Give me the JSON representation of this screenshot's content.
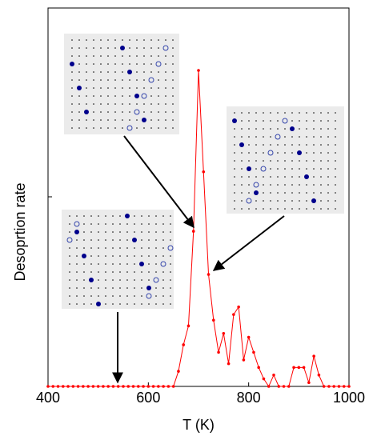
{
  "chart_data": {
    "type": "line",
    "xlabel": "T (K)",
    "ylabel": "Desoprtion rate",
    "x": [
      400,
      410,
      420,
      430,
      440,
      450,
      460,
      470,
      480,
      490,
      500,
      510,
      520,
      530,
      540,
      550,
      560,
      570,
      580,
      590,
      600,
      610,
      620,
      630,
      640,
      650,
      660,
      670,
      680,
      690,
      700,
      710,
      720,
      730,
      740,
      750,
      760,
      770,
      780,
      790,
      800,
      810,
      820,
      830,
      840,
      850,
      860,
      870,
      880,
      890,
      900,
      910,
      920,
      930,
      940,
      950,
      960,
      970,
      980,
      990,
      1000
    ],
    "series": [
      {
        "color": "#ff0000",
        "values": [
          0,
          0,
          0,
          0,
          0,
          0,
          0,
          0,
          0,
          0,
          0,
          0,
          0,
          0,
          0,
          0,
          0,
          0,
          0,
          0,
          0,
          0,
          0,
          0,
          0,
          0,
          0.04,
          0.11,
          0.16,
          0.41,
          0.835,
          0.567,
          0.296,
          0.175,
          0.09,
          0.14,
          0.06,
          0.19,
          0.21,
          0.07,
          0.13,
          0.09,
          0.05,
          0.02,
          0,
          0.03,
          0,
          0,
          0,
          0.05,
          0.05,
          0.05,
          0.01,
          0.08,
          0.03,
          0,
          0,
          0,
          0,
          0,
          0
        ]
      }
    ],
    "xlim": [
      400,
      1000
    ],
    "xticks": [
      400,
      600,
      800,
      1000
    ],
    "ylim": [
      0,
      1
    ]
  }
}
